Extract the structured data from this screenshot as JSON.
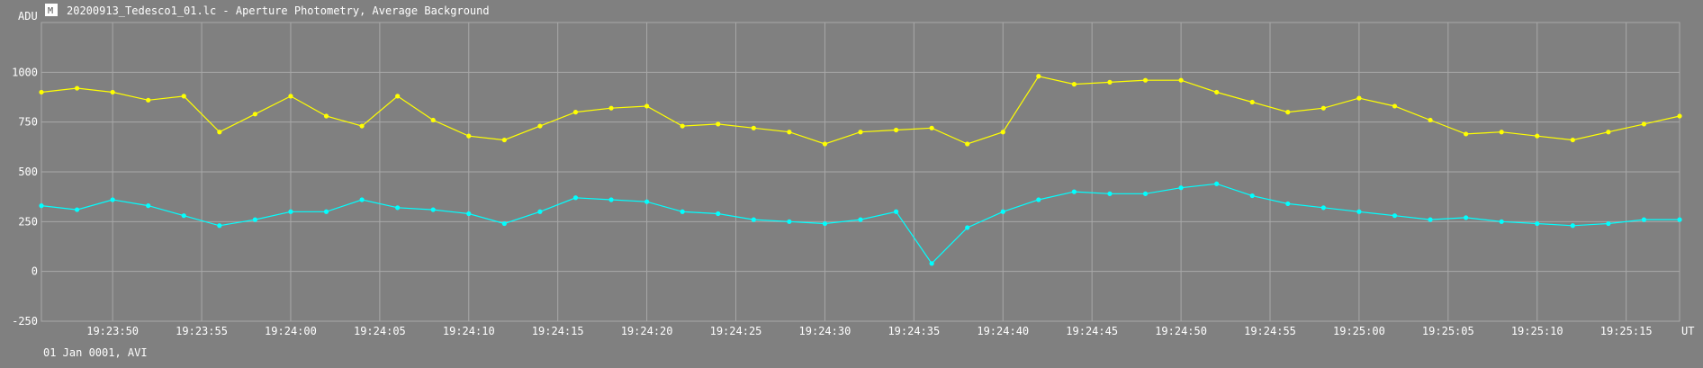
{
  "window": {
    "title": "20200913_Tedesco1_01.lc - Aperture Photometry, Average Background",
    "app_icon": "photometry-app-icon"
  },
  "footer": {
    "date_label": "01 Jan 0001, AVI"
  },
  "chart_data": {
    "type": "line",
    "title": "20200913_Tedesco1_01.lc - Aperture Photometry, Average Background",
    "ylabel": "ADU",
    "xlabel": "UT",
    "ylim": [
      -250,
      1250
    ],
    "y_ticks": [
      -250,
      0,
      250,
      500,
      750,
      1000
    ],
    "x_range_seconds_after_19_23_46": [
      0,
      92
    ],
    "x_ticks": [
      {
        "label": "19:23:50",
        "t": 4
      },
      {
        "label": "19:23:55",
        "t": 9
      },
      {
        "label": "19:24:00",
        "t": 14
      },
      {
        "label": "19:24:05",
        "t": 19
      },
      {
        "label": "19:24:10",
        "t": 24
      },
      {
        "label": "19:24:15",
        "t": 29
      },
      {
        "label": "19:24:20",
        "t": 34
      },
      {
        "label": "19:24:25",
        "t": 39
      },
      {
        "label": "19:24:30",
        "t": 44
      },
      {
        "label": "19:24:35",
        "t": 49
      },
      {
        "label": "19:24:40",
        "t": 54
      },
      {
        "label": "19:24:45",
        "t": 59
      },
      {
        "label": "19:24:50",
        "t": 64
      },
      {
        "label": "19:24:55",
        "t": 69
      },
      {
        "label": "19:25:00",
        "t": 74
      },
      {
        "label": "19:25:05",
        "t": 79
      },
      {
        "label": "19:25:10",
        "t": 84
      },
      {
        "label": "19:25:15",
        "t": 89
      }
    ],
    "grid": true,
    "background": "#808080",
    "grid_color": "#a8a8a8",
    "series": [
      {
        "color": "#ffff00",
        "marker": "dot",
        "t": [
          0,
          2,
          4,
          6,
          8,
          10,
          12,
          14,
          16,
          18,
          20,
          22,
          24,
          26,
          28,
          30,
          32,
          34,
          36,
          38,
          40,
          42,
          44,
          46,
          48,
          50,
          52,
          54,
          56,
          58,
          60,
          62,
          64,
          66,
          68,
          70,
          72,
          74,
          76,
          78,
          80,
          82,
          84,
          86,
          88,
          90,
          92
        ],
        "values": [
          900,
          920,
          900,
          860,
          880,
          700,
          790,
          880,
          780,
          730,
          880,
          760,
          680,
          660,
          730,
          800,
          820,
          830,
          730,
          740,
          720,
          700,
          640,
          700,
          710,
          720,
          640,
          700,
          980,
          940,
          950,
          960,
          960,
          900,
          850,
          800,
          820,
          870,
          830,
          760,
          690,
          700,
          680,
          660,
          700,
          740,
          780
        ]
      },
      {
        "color": "#00ffff",
        "marker": "dot",
        "t": [
          0,
          2,
          4,
          6,
          8,
          10,
          12,
          14,
          16,
          18,
          20,
          22,
          24,
          26,
          28,
          30,
          32,
          34,
          36,
          38,
          40,
          42,
          44,
          46,
          48,
          50,
          52,
          54,
          56,
          58,
          60,
          62,
          64,
          66,
          68,
          70,
          72,
          74,
          76,
          78,
          80,
          82,
          84,
          86,
          88,
          90,
          92
        ],
        "values": [
          330,
          310,
          360,
          330,
          280,
          230,
          260,
          300,
          300,
          360,
          320,
          310,
          290,
          240,
          300,
          370,
          360,
          350,
          300,
          290,
          260,
          250,
          240,
          260,
          300,
          40,
          220,
          300,
          360,
          400,
          390,
          390,
          420,
          440,
          380,
          340,
          320,
          300,
          280,
          260,
          270,
          250,
          240,
          230,
          240,
          260,
          260
        ]
      }
    ]
  }
}
